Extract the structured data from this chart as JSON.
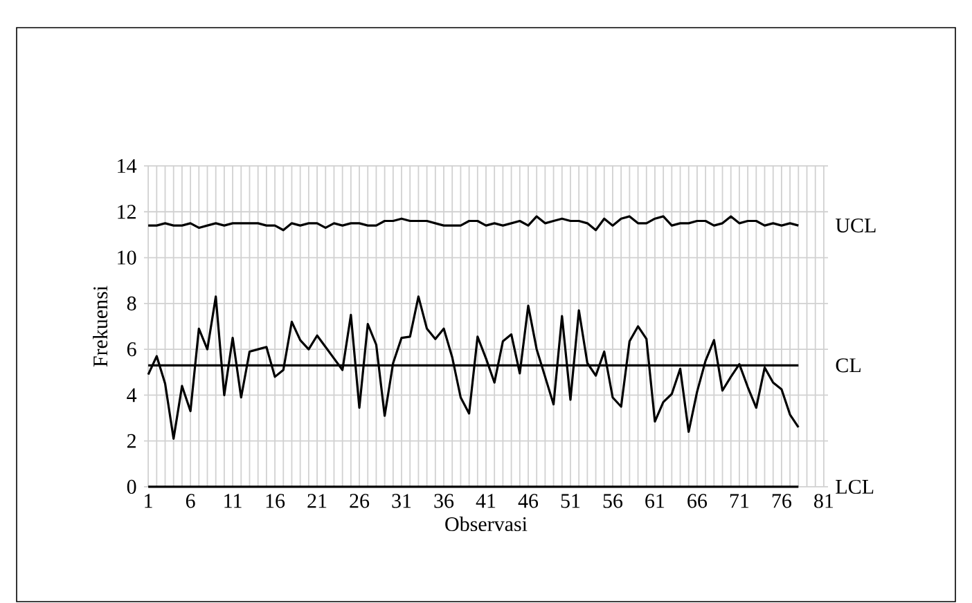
{
  "chart_data": {
    "type": "line",
    "xlabel": "Observasi",
    "ylabel": "Frekuensi",
    "categories": [
      "1",
      null,
      null,
      null,
      null,
      "6",
      null,
      null,
      null,
      null,
      "11",
      null,
      null,
      null,
      null,
      "16",
      null,
      null,
      null,
      null,
      "21",
      null,
      null,
      null,
      null,
      "26",
      null,
      null,
      null,
      null,
      "31",
      null,
      null,
      null,
      null,
      "36",
      null,
      null,
      null,
      null,
      "41",
      null,
      null,
      null,
      null,
      "46",
      null,
      null,
      null,
      null,
      "51",
      null,
      null,
      null,
      null,
      "56",
      null,
      null,
      null,
      null,
      "61",
      null,
      null,
      null,
      null,
      "66",
      null,
      null,
      null,
      null,
      "71",
      null,
      null,
      null,
      null,
      "76",
      null,
      null,
      null,
      null,
      "81"
    ],
    "series": [
      {
        "name": "UCL",
        "color": "#000000",
        "values": [
          11.4,
          11.4,
          11.5,
          11.4,
          11.4,
          11.5,
          11.3,
          11.4,
          11.5,
          11.4,
          11.5,
          11.5,
          11.5,
          11.5,
          11.4,
          11.4,
          11.2,
          11.5,
          11.4,
          11.5,
          11.5,
          11.3,
          11.5,
          11.4,
          11.5,
          11.5,
          11.4,
          11.4,
          11.6,
          11.6,
          11.7,
          11.6,
          11.6,
          11.6,
          11.5,
          11.4,
          11.4,
          11.4,
          11.6,
          11.6,
          11.4,
          11.5,
          11.4,
          11.5,
          11.6,
          11.4,
          11.8,
          11.5,
          11.6,
          11.7,
          11.6,
          11.6,
          11.5,
          11.2,
          11.7,
          11.4,
          11.7,
          11.8,
          11.5,
          11.5,
          11.7,
          11.8,
          11.4,
          11.5,
          11.5,
          11.6,
          11.6,
          11.4,
          11.5,
          11.8,
          11.5,
          11.6,
          11.6,
          11.4,
          11.5,
          11.4,
          11.5,
          11.4,
          null,
          null,
          null
        ]
      },
      {
        "name": "CL",
        "color": "#000000",
        "values": [
          5.3,
          5.3,
          5.3,
          5.3,
          5.3,
          5.3,
          5.3,
          5.3,
          5.3,
          5.3,
          5.3,
          5.3,
          5.3,
          5.3,
          5.3,
          5.3,
          5.3,
          5.3,
          5.3,
          5.3,
          5.3,
          5.3,
          5.3,
          5.3,
          5.3,
          5.3,
          5.3,
          5.3,
          5.3,
          5.3,
          5.3,
          5.3,
          5.3,
          5.3,
          5.3,
          5.3,
          5.3,
          5.3,
          5.3,
          5.3,
          5.3,
          5.3,
          5.3,
          5.3,
          5.3,
          5.3,
          5.3,
          5.3,
          5.3,
          5.3,
          5.3,
          5.3,
          5.3,
          5.3,
          5.3,
          5.3,
          5.3,
          5.3,
          5.3,
          5.3,
          5.3,
          5.3,
          5.3,
          5.3,
          5.3,
          5.3,
          5.3,
          5.3,
          5.3,
          5.3,
          5.3,
          5.3,
          5.3,
          5.3,
          5.3,
          5.3,
          5.3,
          5.3,
          null,
          null,
          null
        ]
      },
      {
        "name": "LCL",
        "color": "#000000",
        "values": [
          0,
          0,
          0,
          0,
          0,
          0,
          0,
          0,
          0,
          0,
          0,
          0,
          0,
          0,
          0,
          0,
          0,
          0,
          0,
          0,
          0,
          0,
          0,
          0,
          0,
          0,
          0,
          0,
          0,
          0,
          0,
          0,
          0,
          0,
          0,
          0,
          0,
          0,
          0,
          0,
          0,
          0,
          0,
          0,
          0,
          0,
          0,
          0,
          0,
          0,
          0,
          0,
          0,
          0,
          0,
          0,
          0,
          0,
          0,
          0,
          0,
          0,
          0,
          0,
          0,
          0,
          0,
          0,
          0,
          0,
          0,
          0,
          0,
          0,
          0,
          0,
          0,
          0,
          null,
          null,
          null
        ]
      },
      {
        "color": "#000000",
        "values": [
          4.9,
          5.7,
          4.5,
          2.1,
          4.4,
          3.3,
          6.9,
          6.0,
          8.3,
          4.0,
          6.5,
          3.9,
          5.9,
          6.0,
          6.1,
          4.8,
          5.1,
          7.2,
          6.4,
          6.0,
          6.6,
          6.1,
          5.6,
          5.1,
          7.5,
          3.45,
          7.1,
          6.2,
          3.1,
          5.4,
          6.5,
          6.55,
          8.3,
          6.9,
          6.45,
          6.9,
          5.65,
          3.9,
          3.2,
          6.55,
          5.6,
          4.55,
          6.35,
          6.65,
          4.95,
          7.9,
          6.0,
          4.8,
          3.6,
          7.45,
          3.8,
          7.7,
          5.4,
          4.85,
          5.9,
          3.9,
          3.5,
          6.35,
          7.0,
          6.45,
          2.85,
          3.7,
          4.05,
          5.15,
          2.4,
          4.15,
          5.5,
          6.4,
          4.2,
          4.8,
          5.35,
          4.35,
          3.45,
          5.2,
          4.55,
          4.25,
          3.15,
          2.6,
          null,
          null,
          null
        ]
      }
    ],
    "ylim": [
      0,
      14
    ],
    "yticks": [
      0,
      2,
      4,
      6,
      8,
      10,
      12,
      14
    ],
    "grid": true,
    "legend": false,
    "line_style": "solid",
    "marker": "none"
  }
}
